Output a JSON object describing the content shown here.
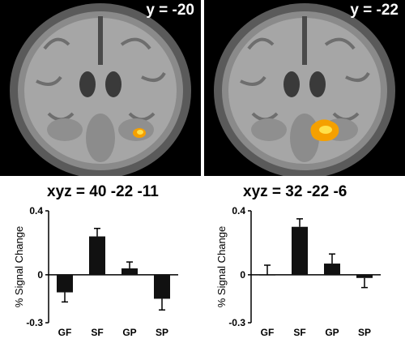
{
  "panels": [
    {
      "slice_label": "y = -20",
      "coordinates": "xyz = 40 -22 -11"
    },
    {
      "slice_label": "y = -22",
      "coordinates": "xyz = 32 -22 -6"
    }
  ],
  "colors": {
    "bar": "#111111",
    "activation": "#f5a000",
    "activation_core": "#ffe14a"
  },
  "chart_data": [
    {
      "type": "bar",
      "title": "xyz = 40 -22 -11",
      "categories": [
        "GF",
        "SF",
        "GP",
        "SP"
      ],
      "values": [
        -0.11,
        0.24,
        0.04,
        -0.15
      ],
      "errors": [
        0.06,
        0.05,
        0.04,
        0.07
      ],
      "ylabel": "% Signal Change",
      "ylim": [
        -0.3,
        0.4
      ],
      "yticks": [
        "0.4",
        "0",
        "-0.3"
      ]
    },
    {
      "type": "bar",
      "title": "xyz = 32 -22 -6",
      "categories": [
        "GF",
        "SF",
        "GP",
        "SP"
      ],
      "values": [
        0.0,
        0.3,
        0.07,
        -0.02
      ],
      "errors": [
        0.06,
        0.05,
        0.06,
        0.06
      ],
      "ylabel": "% Signal Change",
      "ylim": [
        -0.3,
        0.4
      ],
      "yticks": [
        "0.4",
        "0",
        "-0.3"
      ]
    }
  ]
}
